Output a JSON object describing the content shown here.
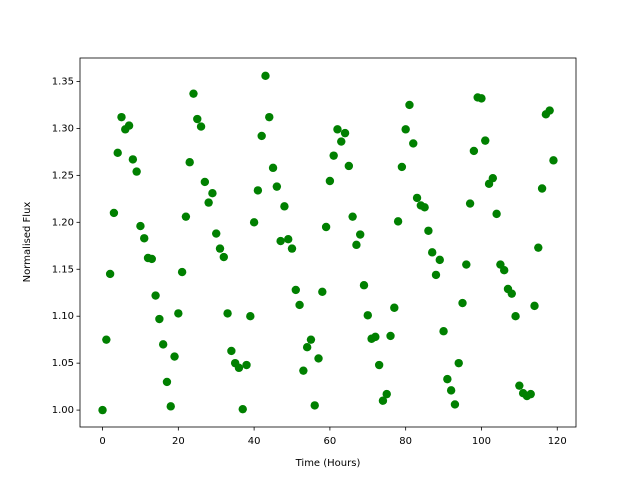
{
  "chart_data": {
    "type": "scatter",
    "x_label": "Time (Hours)",
    "y_label": "Normalised Flux",
    "series": [
      {
        "color": "#008000",
        "x": [
          0,
          1,
          2,
          3,
          4,
          5,
          6,
          7,
          8,
          9,
          10,
          11,
          12,
          13,
          14,
          15,
          16,
          17,
          18,
          19,
          20,
          21,
          22,
          23,
          24,
          25,
          26,
          27,
          28,
          29,
          30,
          31,
          32,
          33,
          34,
          35,
          36,
          37,
          38,
          39,
          40,
          41,
          42,
          43,
          44,
          45,
          46,
          47,
          48,
          49,
          50,
          51,
          52,
          53,
          54,
          55,
          56,
          57,
          58,
          59,
          60,
          61,
          62,
          63,
          64,
          65,
          66,
          67,
          68,
          69,
          70,
          71,
          72,
          73,
          74,
          75,
          76,
          77,
          78,
          79,
          80,
          81,
          82,
          83,
          84,
          85,
          86,
          87,
          88,
          89,
          90,
          91,
          92,
          93,
          94,
          95,
          96,
          97,
          98,
          99,
          100,
          101,
          102,
          103,
          104,
          105,
          106,
          107,
          108,
          109,
          110,
          111,
          112,
          113,
          114,
          115,
          116,
          117,
          118,
          119
        ],
        "values": [
          1.0,
          1.075,
          1.145,
          1.21,
          1.274,
          1.312,
          1.299,
          1.303,
          1.267,
          1.254,
          1.196,
          1.183,
          1.162,
          1.161,
          1.122,
          1.097,
          1.07,
          1.03,
          1.004,
          1.057,
          1.103,
          1.147,
          1.206,
          1.264,
          1.337,
          1.31,
          1.302,
          1.243,
          1.221,
          1.231,
          1.188,
          1.172,
          1.163,
          1.103,
          1.063,
          1.05,
          1.045,
          1.001,
          1.048,
          1.1,
          1.2,
          1.234,
          1.292,
          1.356,
          1.312,
          1.258,
          1.238,
          1.18,
          1.217,
          1.182,
          1.172,
          1.128,
          1.112,
          1.042,
          1.067,
          1.075,
          1.005,
          1.055,
          1.126,
          1.195,
          1.244,
          1.271,
          1.299,
          1.286,
          1.295,
          1.26,
          1.206,
          1.176,
          1.187,
          1.133,
          1.101,
          1.076,
          1.078,
          1.048,
          1.01,
          1.017,
          1.079,
          1.109,
          1.201,
          1.259,
          1.299,
          1.325,
          1.284,
          1.226,
          1.218,
          1.216,
          1.191,
          1.168,
          1.144,
          1.16,
          1.084,
          1.033,
          1.021,
          1.006,
          1.05,
          1.114,
          1.155,
          1.22,
          1.276,
          1.333,
          1.332,
          1.287,
          1.241,
          1.247,
          1.209,
          1.155,
          1.149,
          1.129,
          1.124,
          1.1,
          1.026,
          1.018,
          1.015,
          1.017,
          1.111,
          1.173,
          1.236,
          1.315,
          1.319,
          1.266
        ]
      }
    ],
    "xlim": [
      -5.95,
      124.95
    ],
    "ylim": [
      0.982,
      1.375
    ],
    "xticks": [
      0,
      20,
      40,
      60,
      80,
      100,
      120
    ],
    "yticks": [
      {
        "value": 1.0,
        "label": "1.00"
      },
      1.05,
      {
        "value": 1.1,
        "label": "1.10"
      },
      1.15,
      {
        "value": 1.2,
        "label": "1.20"
      },
      1.25,
      {
        "value": 1.3,
        "label": "1.30"
      },
      1.35
    ]
  }
}
